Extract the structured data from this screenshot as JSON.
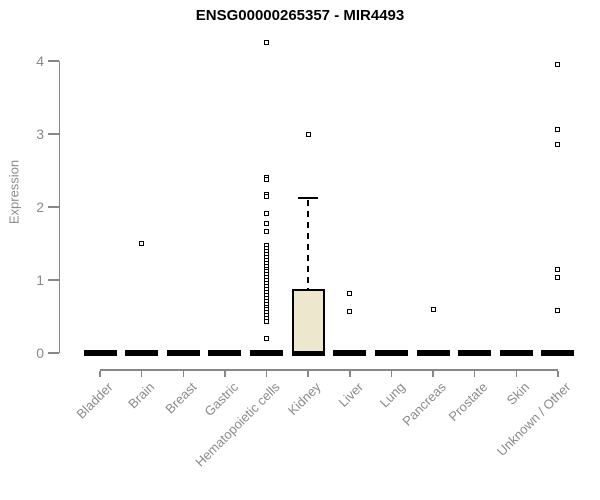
{
  "chart_data": {
    "type": "box",
    "title": "ENSG00000265357 - MIR4493",
    "ylabel": "Expression",
    "xlabel": "",
    "ylim": [
      0,
      4.3
    ],
    "yticks": [
      0,
      1,
      2,
      3,
      4
    ],
    "grid": false,
    "legend": "none",
    "colors": {
      "box_fill": "#EDE7CE",
      "box_border": "#000000",
      "axis": "#878787",
      "labels": "#8a8a8a",
      "title": "#000000"
    },
    "categories": [
      "Bladder",
      "Brain",
      "Breast",
      "Gastric",
      "Hematopoietic cells",
      "Kidney",
      "Liver",
      "Lung",
      "Pancreas",
      "Prostate",
      "Skin",
      "Unknown / Other"
    ],
    "series": [
      {
        "category": "Bladder",
        "q1": 0,
        "median": 0,
        "q3": 0,
        "whisker_low": 0,
        "whisker_high": 0,
        "outliers": []
      },
      {
        "category": "Brain",
        "q1": 0,
        "median": 0,
        "q3": 0,
        "whisker_low": 0,
        "whisker_high": 0,
        "outliers": [
          1.5
        ]
      },
      {
        "category": "Breast",
        "q1": 0,
        "median": 0,
        "q3": 0,
        "whisker_low": 0,
        "whisker_high": 0,
        "outliers": []
      },
      {
        "category": "Gastric",
        "q1": 0,
        "median": 0,
        "q3": 0,
        "whisker_low": 0,
        "whisker_high": 0,
        "outliers": []
      },
      {
        "category": "Hematopoietic cells",
        "q1": 0,
        "median": 0,
        "q3": 0,
        "whisker_low": 0,
        "whisker_high": 0,
        "outliers": [
          4.26,
          2.4,
          2.37,
          2.17,
          2.14,
          1.91,
          1.78,
          1.66,
          1.47,
          1.43,
          1.39,
          1.35,
          1.31,
          1.27,
          1.23,
          1.19,
          1.15,
          1.11,
          1.07,
          1.03,
          0.99,
          0.95,
          0.91,
          0.87,
          0.83,
          0.79,
          0.75,
          0.71,
          0.67,
          0.63,
          0.59,
          0.55,
          0.51,
          0.47,
          0.43,
          0.2
        ]
      },
      {
        "category": "Kidney",
        "q1": 0,
        "median": 0,
        "q3": 0.88,
        "whisker_low": 0,
        "whisker_high": 2.12,
        "outliers": [
          3.0
        ]
      },
      {
        "category": "Liver",
        "q1": 0,
        "median": 0,
        "q3": 0,
        "whisker_low": 0,
        "whisker_high": 0,
        "outliers": [
          0.82,
          0.57
        ]
      },
      {
        "category": "Lung",
        "q1": 0,
        "median": 0,
        "q3": 0,
        "whisker_low": 0,
        "whisker_high": 0,
        "outliers": []
      },
      {
        "category": "Pancreas",
        "q1": 0,
        "median": 0,
        "q3": 0,
        "whisker_low": 0,
        "whisker_high": 0,
        "outliers": [
          0.59
        ]
      },
      {
        "category": "Prostate",
        "q1": 0,
        "median": 0,
        "q3": 0,
        "whisker_low": 0,
        "whisker_high": 0,
        "outliers": []
      },
      {
        "category": "Skin",
        "q1": 0,
        "median": 0,
        "q3": 0,
        "whisker_low": 0,
        "whisker_high": 0,
        "outliers": []
      },
      {
        "category": "Unknown / Other",
        "q1": 0,
        "median": 0,
        "q3": 0,
        "whisker_low": 0,
        "whisker_high": 0,
        "outliers": [
          3.95,
          3.06,
          2.85,
          1.15,
          1.03,
          0.58
        ]
      }
    ]
  }
}
